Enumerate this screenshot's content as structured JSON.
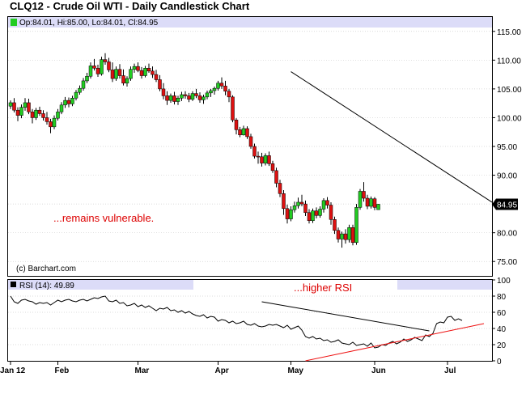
{
  "title": "CLQ12 - Crude Oil WTI - Daily Candlestick Chart",
  "price_legend": "Op:84.01, Hi:85.00, Lo:84.01, Cl:84.95",
  "rsi_legend": "RSI (14): 49.89",
  "watermark": "(c) Barchart.com",
  "last_price_label": "84.95",
  "colors": {
    "up": "#22cc22",
    "down": "#dd1111",
    "annotation": "#dd0000",
    "legend_band": "#dcdcf8",
    "support_line": "#ee1111",
    "trend_line": "#000000"
  },
  "chart_data": [
    {
      "type": "candlestick",
      "title": "CLQ12 - Crude Oil WTI - Daily Candlestick Chart",
      "ylim": [
        72.5,
        117.5
      ],
      "y_ticks": [
        75.0,
        80.0,
        85.0,
        90.0,
        95.0,
        100.0,
        105.0,
        110.0,
        115.0
      ],
      "x_ticks": [
        {
          "label": "Jan 12",
          "index": 0
        },
        {
          "label": "Feb",
          "index": 13
        },
        {
          "label": "Mar",
          "index": 35
        },
        {
          "label": "Apr",
          "index": 57
        },
        {
          "label": "May",
          "index": 77
        },
        {
          "label": "Jun",
          "index": 100
        },
        {
          "label": "Jul",
          "index": 120
        }
      ],
      "ohlc": [
        [
          102,
          103,
          101.5,
          102.6
        ],
        [
          102.6,
          103.4,
          100.9,
          101.3
        ],
        [
          101.3,
          101.8,
          99.4,
          100.4
        ],
        [
          100.4,
          102.3,
          99.9,
          101.8
        ],
        [
          101.8,
          103.4,
          101.2,
          102.6
        ],
        [
          102.6,
          103.3,
          100.6,
          101.0
        ],
        [
          101.0,
          101.5,
          99.0,
          100.0
        ],
        [
          100.0,
          101.7,
          99.6,
          101.3
        ],
        [
          101.3,
          101.9,
          100.3,
          100.7
        ],
        [
          100.7,
          101.3,
          99.5,
          100.0
        ],
        [
          100.0,
          101.0,
          98.8,
          99.3
        ],
        [
          99.3,
          99.8,
          97.3,
          98.4
        ],
        [
          98.4,
          100.4,
          98.0,
          99.9
        ],
        [
          99.9,
          101.5,
          99.5,
          101.0
        ],
        [
          101.0,
          102.7,
          100.6,
          102.2
        ],
        [
          102.2,
          103.6,
          101.7,
          103.0
        ],
        [
          103.0,
          103.5,
          101.8,
          102.4
        ],
        [
          102.4,
          103.8,
          102.0,
          103.4
        ],
        [
          103.4,
          104.8,
          103.0,
          104.4
        ],
        [
          104.4,
          105.6,
          104.0,
          105.1
        ],
        [
          105.1,
          106.9,
          104.7,
          106.4
        ],
        [
          106.4,
          107.8,
          106.0,
          107.2
        ],
        [
          107.2,
          109.6,
          106.8,
          109.0
        ],
        [
          109.0,
          110.2,
          108.2,
          108.6
        ],
        [
          108.6,
          109.2,
          107.1,
          107.6
        ],
        [
          107.6,
          110.6,
          107.3,
          110.1
        ],
        [
          110.1,
          111.2,
          109.2,
          109.7
        ],
        [
          109.7,
          110.4,
          107.9,
          108.3
        ],
        [
          108.3,
          109.6,
          106.2,
          106.8
        ],
        [
          106.8,
          108.9,
          106.4,
          108.4
        ],
        [
          108.4,
          109.3,
          106.8,
          107.3
        ],
        [
          107.3,
          108.4,
          105.6,
          106.0
        ],
        [
          106.0,
          107.2,
          105.4,
          106.8
        ],
        [
          106.8,
          108.9,
          106.4,
          108.4
        ],
        [
          108.4,
          109.4,
          107.8,
          108.9
        ],
        [
          108.9,
          109.6,
          107.9,
          108.2
        ],
        [
          108.2,
          108.8,
          106.8,
          107.3
        ],
        [
          107.3,
          109.0,
          107.0,
          108.6
        ],
        [
          108.6,
          109.4,
          107.8,
          108.1
        ],
        [
          108.1,
          108.9,
          106.9,
          107.5
        ],
        [
          107.5,
          108.3,
          106.2,
          106.6
        ],
        [
          106.6,
          107.4,
          104.6,
          105.0
        ],
        [
          105.0,
          106.0,
          103.2,
          103.8
        ],
        [
          103.8,
          104.6,
          102.2,
          103.0
        ],
        [
          103.0,
          104.2,
          102.6,
          103.8
        ],
        [
          103.8,
          104.5,
          102.3,
          102.8
        ],
        [
          102.8,
          103.8,
          102.2,
          103.4
        ],
        [
          103.4,
          104.5,
          102.9,
          104.0
        ],
        [
          104.0,
          104.6,
          103.3,
          103.8
        ],
        [
          103.8,
          104.3,
          102.7,
          103.2
        ],
        [
          103.2,
          104.6,
          102.9,
          104.2
        ],
        [
          104.2,
          105.0,
          103.4,
          103.8
        ],
        [
          103.8,
          104.4,
          102.6,
          103.1
        ],
        [
          103.1,
          104.0,
          102.4,
          103.6
        ],
        [
          103.6,
          104.7,
          103.2,
          104.3
        ],
        [
          104.3,
          105.0,
          103.6,
          104.7
        ],
        [
          104.7,
          105.4,
          104.0,
          105.1
        ],
        [
          105.1,
          106.4,
          104.7,
          106.0
        ],
        [
          106.0,
          107.0,
          105.0,
          105.5
        ],
        [
          105.5,
          106.4,
          103.9,
          104.6
        ],
        [
          104.6,
          105.0,
          102.7,
          103.6
        ],
        [
          103.6,
          103.9,
          99.2,
          99.6
        ],
        [
          99.6,
          99.9,
          97.1,
          97.9
        ],
        [
          97.9,
          98.4,
          96.6,
          97.0
        ],
        [
          97.0,
          98.6,
          96.9,
          98.1
        ],
        [
          98.1,
          98.5,
          96.3,
          96.7
        ],
        [
          96.7,
          97.2,
          94.6,
          95.0
        ],
        [
          95.0,
          95.5,
          92.9,
          93.3
        ],
        [
          93.3,
          94.1,
          92.0,
          93.2
        ],
        [
          93.2,
          93.9,
          91.5,
          92.1
        ],
        [
          92.1,
          93.8,
          91.7,
          93.4
        ],
        [
          93.4,
          94.1,
          91.6,
          92.0
        ],
        [
          92.0,
          92.5,
          90.4,
          90.8
        ],
        [
          90.8,
          91.3,
          87.9,
          88.6
        ],
        [
          88.6,
          89.2,
          86.2,
          86.8
        ],
        [
          86.8,
          87.4,
          83.1,
          84.2
        ],
        [
          84.2,
          84.9,
          81.6,
          82.4
        ],
        [
          82.4,
          84.6,
          82.0,
          84.0
        ],
        [
          84.0,
          85.4,
          83.5,
          84.7
        ],
        [
          84.7,
          86.1,
          84.2,
          85.3
        ],
        [
          85.3,
          86.6,
          84.6,
          85.0
        ],
        [
          85.0,
          85.6,
          82.9,
          83.5
        ],
        [
          83.5,
          84.1,
          81.6,
          82.1
        ],
        [
          82.1,
          84.2,
          81.7,
          83.8
        ],
        [
          83.8,
          84.4,
          82.5,
          83.0
        ],
        [
          83.0,
          84.6,
          82.6,
          84.1
        ],
        [
          84.1,
          86.0,
          83.5,
          85.6
        ],
        [
          85.6,
          86.2,
          84.2,
          84.8
        ],
        [
          84.8,
          85.3,
          81.4,
          82.3
        ],
        [
          82.3,
          82.8,
          79.8,
          80.4
        ],
        [
          80.4,
          80.9,
          78.3,
          78.9
        ],
        [
          78.9,
          80.2,
          77.4,
          79.8
        ],
        [
          79.8,
          80.6,
          78.1,
          78.8
        ],
        [
          78.8,
          81.4,
          78.3,
          80.9
        ],
        [
          80.9,
          81.4,
          77.8,
          78.3
        ],
        [
          78.3,
          85.0,
          77.9,
          84.4
        ],
        [
          84.4,
          87.6,
          84.0,
          87.2
        ],
        [
          87.2,
          88.8,
          85.4,
          86.0
        ],
        [
          86.0,
          86.6,
          84.1,
          84.6
        ],
        [
          84.6,
          86.3,
          84.2,
          85.9
        ],
        [
          85.9,
          86.2,
          83.9,
          84.4
        ],
        [
          84.01,
          85.0,
          84.01,
          84.95
        ]
      ],
      "trendline": {
        "from": {
          "index": 77,
          "price": 108.0
        },
        "to": {
          "index": 134,
          "price": 85.3
        }
      },
      "annotation": "...remains vulnerable."
    },
    {
      "type": "line",
      "series": [
        {
          "name": "RSI (14)",
          "values": [
            80,
            73,
            71,
            75,
            76,
            74,
            73,
            70,
            72,
            71,
            72,
            69,
            72,
            75,
            73,
            75,
            76,
            74,
            73,
            75,
            76,
            74,
            76,
            78,
            77,
            79,
            80,
            74,
            73,
            75,
            71,
            72,
            68,
            69,
            71,
            67,
            69,
            66,
            68,
            65,
            62,
            65,
            64,
            66,
            62,
            63,
            60,
            62,
            59,
            61,
            58,
            56,
            55,
            57,
            53,
            55,
            54,
            49,
            51,
            50,
            47,
            49,
            46,
            47,
            49,
            45,
            44,
            46,
            43,
            42,
            43,
            45,
            44,
            45,
            43,
            41,
            44,
            39,
            41,
            43,
            38,
            30,
            28,
            30,
            27,
            28,
            25,
            26,
            23,
            24,
            26,
            22,
            21,
            20,
            23,
            19,
            20,
            21,
            18,
            22,
            16,
            17,
            20,
            19,
            22,
            24,
            21,
            23,
            27,
            24,
            26,
            29,
            27,
            25,
            32,
            30,
            34,
            46,
            48,
            47,
            54,
            55,
            50,
            52,
            49.89
          ]
        }
      ],
      "ylim": [
        0,
        100
      ],
      "y_ticks": [
        0,
        20,
        40,
        60,
        80,
        100
      ],
      "trendline": {
        "from": {
          "index": 69,
          "value": 73
        },
        "to": {
          "index": 115,
          "value": 37
        }
      },
      "support_line": {
        "from": {
          "index": 81,
          "value": 0
        },
        "to": {
          "index": 134,
          "value": 46
        }
      },
      "annotation": "...higher RSI"
    }
  ]
}
